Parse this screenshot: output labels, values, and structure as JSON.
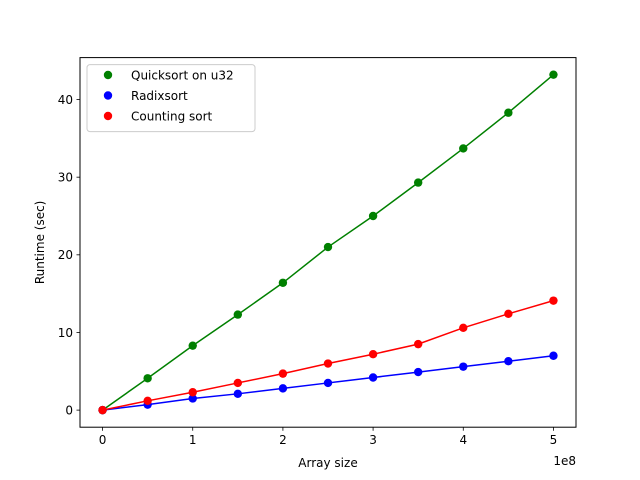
{
  "chart_data": {
    "type": "line",
    "title": "",
    "xlabel": "Array size",
    "ylabel": "Runtime (sec)",
    "x_offset_label": "1e8",
    "x_scale": 100000000,
    "xlim": [
      -25000000,
      525000000
    ],
    "ylim": [
      -2.2,
      45.4
    ],
    "x_ticks": [
      0,
      100000000,
      200000000,
      300000000,
      400000000,
      500000000
    ],
    "x_tick_labels": [
      "0",
      "1",
      "2",
      "3",
      "4",
      "5"
    ],
    "y_ticks": [
      0,
      10,
      20,
      30,
      40
    ],
    "y_tick_labels": [
      "0",
      "10",
      "20",
      "30",
      "40"
    ],
    "grid": false,
    "legend_position": "upper-left",
    "x": [
      0,
      50000000,
      100000000,
      150000000,
      200000000,
      250000000,
      300000000,
      350000000,
      400000000,
      450000000,
      500000000
    ],
    "series": [
      {
        "name": "Quicksort on u32",
        "color": "#008000",
        "values": [
          0.0,
          4.1,
          8.3,
          12.3,
          16.4,
          21.0,
          25.0,
          29.3,
          33.7,
          38.3,
          43.2
        ]
      },
      {
        "name": "Radixsort",
        "color": "#0000ff",
        "values": [
          0.0,
          0.7,
          1.5,
          2.1,
          2.8,
          3.5,
          4.2,
          4.9,
          5.6,
          6.3,
          7.0
        ]
      },
      {
        "name": "Counting sort",
        "color": "#ff0000",
        "values": [
          0.0,
          1.2,
          2.3,
          3.5,
          4.7,
          6.0,
          7.2,
          8.5,
          10.6,
          12.4,
          14.1
        ]
      }
    ]
  }
}
